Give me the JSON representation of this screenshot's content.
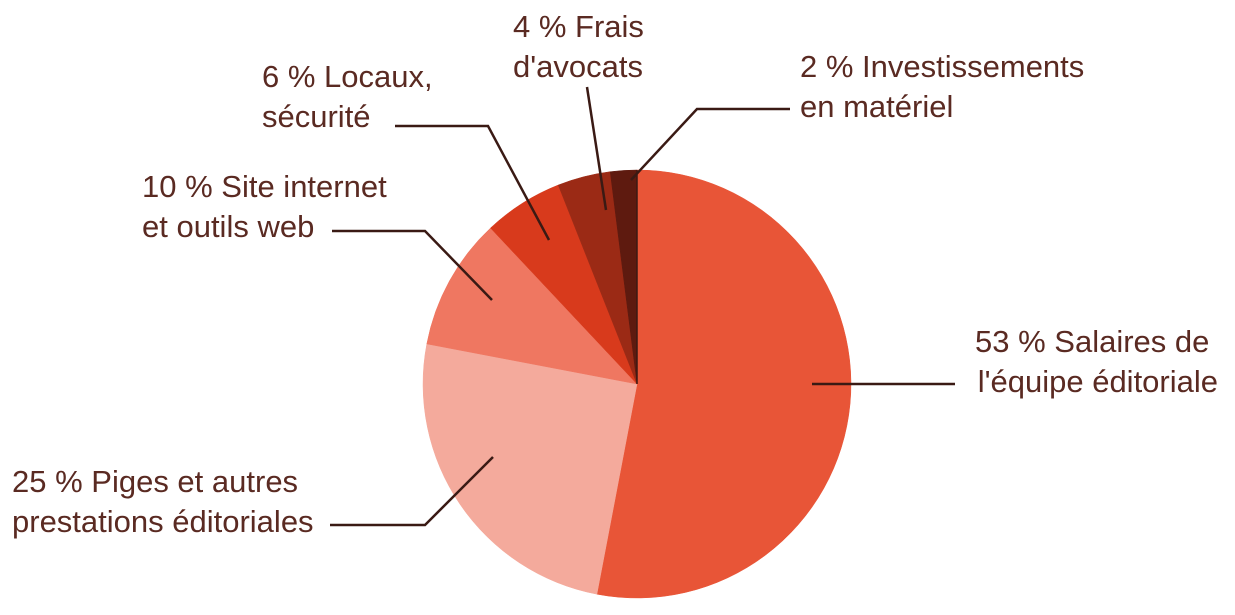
{
  "chart_data": {
    "type": "pie",
    "unit": "%",
    "start": "12 o'clock",
    "direction": "clockwise",
    "legend": "none",
    "slices": [
      {
        "value": 53,
        "label_lines": [
          "53 % Salaires de",
          "l'équipe éditoriale"
        ],
        "color": "#e85537"
      },
      {
        "value": 25,
        "label_lines": [
          "25 % Piges et autres",
          "prestations éditoriales"
        ],
        "color": "#f4aa9c"
      },
      {
        "value": 10,
        "label_lines": [
          "10 % Site internet",
          "et outils web"
        ],
        "color": "#ef7761"
      },
      {
        "value": 6,
        "label_lines": [
          "6 % Locaux,",
          "sécurité"
        ],
        "color": "#d83a1c"
      },
      {
        "value": 4,
        "label_lines": [
          "4 % Frais",
          "d'avocats"
        ],
        "color": "#9b2a15"
      },
      {
        "value": 2,
        "label_lines": [
          "2 % Investissements",
          "en matériel"
        ],
        "color": "#5e1a0f"
      }
    ],
    "colors": {
      "label_text": "#5a2a22",
      "leader_line": "#3a1a14"
    }
  }
}
